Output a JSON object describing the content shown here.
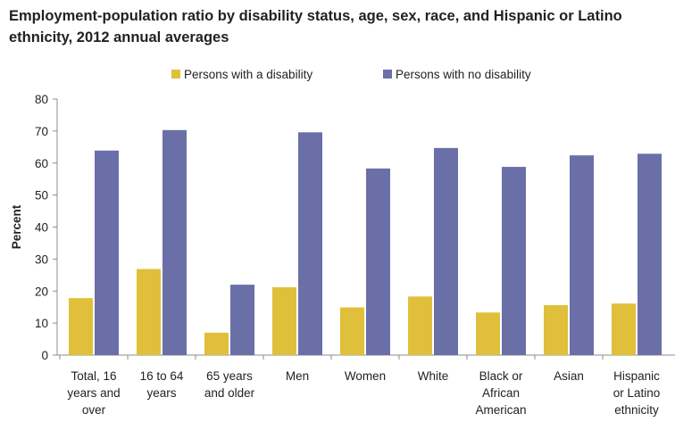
{
  "chart_data": {
    "type": "bar",
    "title": "Employment-population ratio by disability status, age, sex, race, and Hispanic or Latino ethnicity, 2012 annual averages",
    "ylabel": "Percent",
    "xlabel": "",
    "ylim": [
      0,
      80
    ],
    "yticks": [
      "0",
      "10",
      "20",
      "30",
      "40",
      "50",
      "60",
      "70",
      "80"
    ],
    "legend_position": "top",
    "grid": false,
    "categories": [
      [
        "Total, 16",
        "years and",
        "over"
      ],
      [
        "16 to 64",
        "years"
      ],
      [
        "65 years",
        "and older"
      ],
      [
        "Men"
      ],
      [
        "Women"
      ],
      [
        "White"
      ],
      [
        "Black or",
        "African",
        "American"
      ],
      [
        "Asian"
      ],
      [
        "Hispanic",
        "or Latino",
        "ethnicity"
      ]
    ],
    "series": [
      {
        "name": "Persons with a disability",
        "color": "#e0c03a",
        "values": [
          17.8,
          26.9,
          7.0,
          21.2,
          14.9,
          18.3,
          13.3,
          15.6,
          16.1
        ]
      },
      {
        "name": "Persons with no disability",
        "color": "#6b6fa8",
        "values": [
          63.9,
          70.3,
          22.0,
          69.6,
          58.3,
          64.7,
          58.8,
          62.4,
          62.9
        ]
      }
    ]
  }
}
